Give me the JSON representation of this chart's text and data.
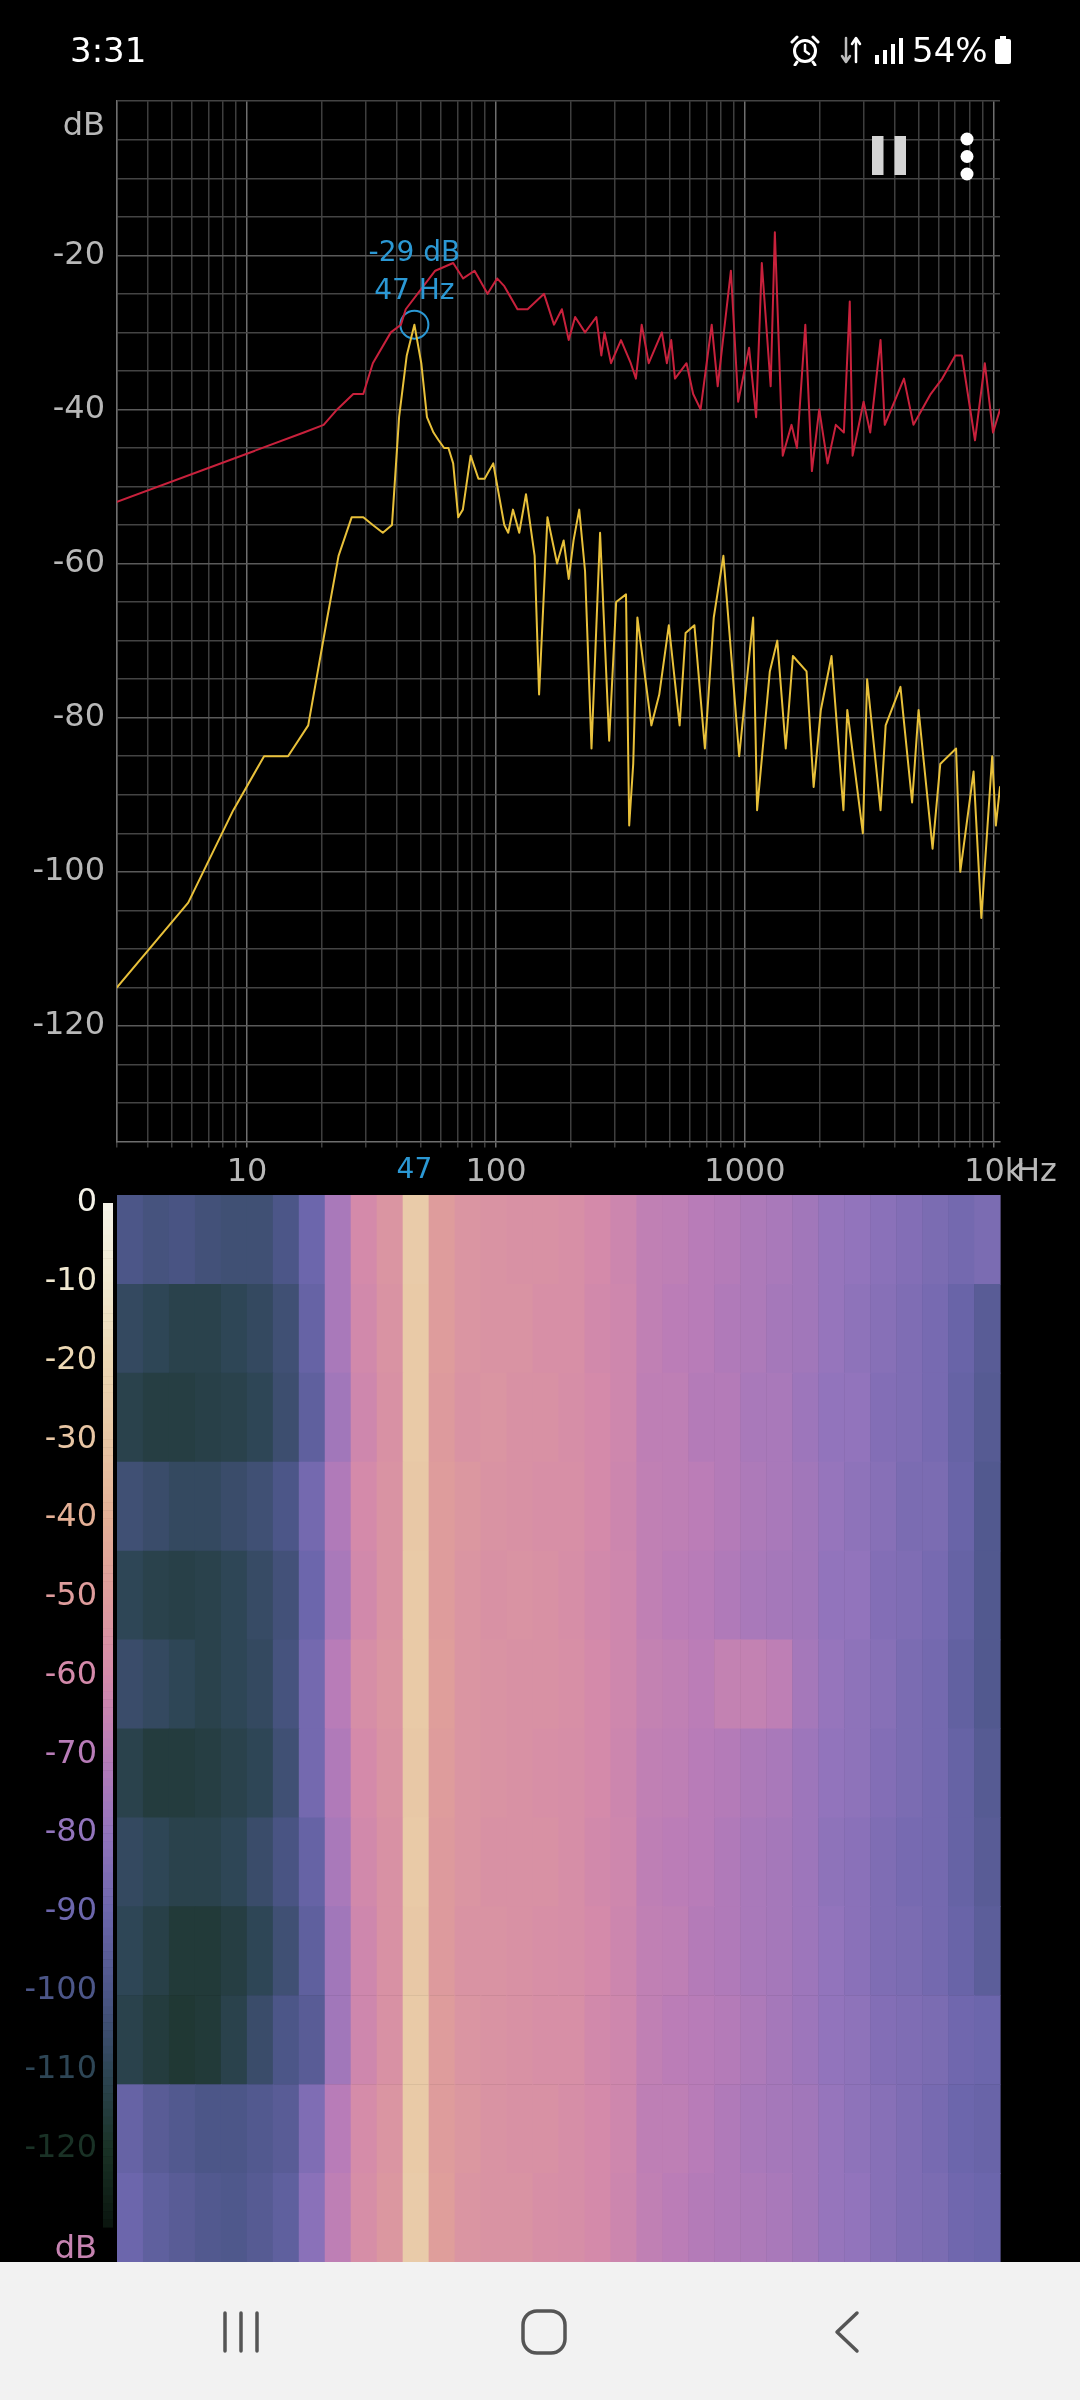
{
  "chart_data": [
    {
      "type": "other",
      "annotations": [
        "3:31",
        "54%"
      ]
    },
    {
      "type": "line",
      "ylabel": "dB",
      "xlabel": "Hz",
      "log": "x",
      "grid": true,
      "xlim": [
        3,
        10600
      ],
      "xticks": [
        {
          "value": 3,
          "label": null
        },
        {
          "value": 4,
          "label": null
        },
        {
          "value": 5,
          "label": null
        },
        {
          "value": 6,
          "label": null
        },
        {
          "value": 7,
          "label": null
        },
        {
          "value": 8,
          "label": null
        },
        {
          "value": 9,
          "label": null
        },
        10,
        {
          "value": 20,
          "label": null
        },
        {
          "value": 30,
          "label": null
        },
        {
          "value": 40,
          "label": null
        },
        47,
        {
          "value": 50,
          "label": null
        },
        {
          "value": 60,
          "label": null
        },
        {
          "value": 70,
          "label": null
        },
        {
          "value": 80,
          "label": null
        },
        {
          "value": 90,
          "label": null
        },
        100,
        {
          "value": 200,
          "label": null
        },
        {
          "value": 300,
          "label": null
        },
        {
          "value": 400,
          "label": null
        },
        {
          "value": 500,
          "label": null
        },
        {
          "value": 600,
          "label": null
        },
        {
          "value": 700,
          "label": null
        },
        {
          "value": 800,
          "label": null
        },
        {
          "value": 900,
          "label": null
        },
        1000,
        {
          "value": 2000,
          "label": null
        },
        {
          "value": 3000,
          "label": null
        },
        {
          "value": 4000,
          "label": null
        },
        {
          "value": 5000,
          "label": null
        },
        {
          "value": 6000,
          "label": null
        },
        {
          "value": 7000,
          "label": null
        },
        {
          "value": 8000,
          "label": null
        },
        {
          "value": 9000,
          "label": null
        },
        {
          "value": 10000,
          "label": "10k"
        }
      ],
      "ylim": [
        -135,
        0
      ],
      "yticks": [
        {
          "value": 0,
          "label": null
        },
        {
          "value": -5,
          "label": null
        },
        {
          "value": -10,
          "label": null
        },
        {
          "value": -15,
          "label": null
        },
        -20,
        {
          "value": -25,
          "label": null
        },
        {
          "value": -30,
          "label": null
        },
        {
          "value": -35,
          "label": null
        },
        -40,
        {
          "value": -45,
          "label": null
        },
        {
          "value": -50,
          "label": null
        },
        {
          "value": -55,
          "label": null
        },
        -60,
        {
          "value": -65,
          "label": null
        },
        {
          "value": -70,
          "label": null
        },
        {
          "value": -75,
          "label": null
        },
        -80,
        {
          "value": -85,
          "label": null
        },
        {
          "value": -90,
          "label": null
        },
        {
          "value": -95,
          "label": null
        },
        -100,
        {
          "value": -105,
          "label": null
        },
        {
          "value": -110,
          "label": null
        },
        {
          "value": -115,
          "label": null
        },
        -120,
        {
          "value": -125,
          "label": null
        },
        {
          "value": -130,
          "label": null
        }
      ],
      "series": [
        {
          "color": "#e8c03a",
          "x": [
            3,
            5.8,
            8.8,
            11.7,
            14.6,
            17.6,
            21,
            23.3,
            26.3,
            29.3,
            32,
            35.1,
            38.2,
            40.8,
            43.8,
            47,
            50.1,
            52.8,
            56.1,
            58.8,
            61.9,
            64.4,
            67.3,
            70.5,
            73.6,
            79.1,
            85,
            90,
            97.5,
            108,
            112,
            117,
            124,
            132,
            143,
            149,
            161,
            176,
            187,
            196,
            205,
            216,
            228,
            242,
            262,
            285,
            304,
            333,
            343,
            356,
            370,
            421,
            453,
            495,
            547,
            578,
            627,
            691,
            750,
            820,
            949,
            1080,
            1120,
            1260,
            1350,
            1460,
            1560,
            1770,
            1890,
            2020,
            2230,
            2490,
            2580,
            2980,
            3100,
            3510,
            3680,
            4220,
            4700,
            4990,
            5680,
            6100,
            7060,
            7340,
            8300,
            8920,
            9860,
            10200,
            10600
          ],
          "values": [
            -115,
            -104,
            -92,
            -85,
            -85,
            -81,
            -67,
            -59,
            -54,
            -54,
            -55,
            -56,
            -55,
            -41,
            -33,
            -29,
            -34,
            -41,
            -43,
            -44,
            -45,
            -45,
            -47,
            -54,
            -53,
            -46,
            -49,
            -49,
            -47,
            -55,
            -56,
            -53,
            -56,
            -51,
            -59,
            -77,
            -54,
            -60,
            -57,
            -62,
            -57,
            -53,
            -61,
            -84,
            -56,
            -83,
            -65,
            -64,
            -94,
            -86,
            -67,
            -81,
            -77,
            -68,
            -81,
            -69,
            -68,
            -84,
            -67,
            -59,
            -85,
            -67,
            -92,
            -74,
            -70,
            -84,
            -72,
            -74,
            -89,
            -79,
            -72,
            -92,
            -79,
            -95,
            -75,
            -92,
            -81,
            -76,
            -91,
            -79,
            -97,
            -86,
            -84,
            -100,
            -87,
            -106,
            -85,
            -94,
            -89
          ]
        },
        {
          "color": "#c8213c",
          "x": [
            3,
            16.9,
            20.3,
            23,
            26.7,
            29.3,
            32,
            37.8,
            41.5,
            43.4,
            57,
            67.3,
            73.8,
            82,
            92.5,
            101,
            108,
            122,
            134,
            156,
            171,
            184,
            196,
            208,
            228,
            253,
            265,
            273,
            290,
            318,
            348,
            365,
            385,
            411,
            464,
            486,
            506,
            524,
            583,
            620,
            664,
            736,
            778,
            879,
            940,
            1040,
            1110,
            1170,
            1270,
            1320,
            1420,
            1540,
            1620,
            1750,
            1860,
            1990,
            2150,
            2320,
            2500,
            2640,
            2710,
            3000,
            3190,
            3510,
            3650,
            4360,
            4760,
            5580,
            6210,
            7010,
            7450,
            8410,
            9210,
            9940,
            10600
          ],
          "values": [
            -52,
            -43,
            -42,
            -40,
            -38,
            -38,
            -34,
            -30,
            -29,
            -27,
            -22,
            -21,
            -23,
            -22,
            -25,
            -23,
            -24,
            -27,
            -27,
            -25,
            -29,
            -27,
            -31,
            -28,
            -30,
            -28,
            -33,
            -30,
            -34,
            -31,
            -34,
            -36,
            -29,
            -34,
            -30,
            -34,
            -31,
            -36,
            -34,
            -38,
            -40,
            -29,
            -37,
            -22,
            -39,
            -32,
            -41,
            -21,
            -37,
            -17,
            -46,
            -42,
            -45,
            -29,
            -48,
            -40,
            -47,
            -42,
            -43,
            -26,
            -46,
            -39,
            -43,
            -31,
            -42,
            -36,
            -42,
            -38,
            -36,
            -33,
            -33,
            -44,
            -34,
            -43,
            -40
          ]
        },
        {
          "type": "scatter",
          "marker": "circle",
          "color": "#2b98d4",
          "x": [
            47
          ],
          "values": [
            -29
          ]
        }
      ],
      "annotations": [
        {
          "text": "-29 dB",
          "x": 47,
          "y": -29
        },
        {
          "text": "47 Hz",
          "x": 47,
          "y": -29
        }
      ]
    },
    {
      "type": "heatmap",
      "tick_labels": false,
      "clim": [
        -130,
        0
      ],
      "cticks": [
        0,
        -10,
        -20,
        -30,
        -40,
        -50,
        -60,
        -70,
        -80,
        -90,
        -100,
        -110,
        -120
      ],
      "clabel": "dB",
      "categories": [
        null,
        null,
        null,
        null,
        null,
        null,
        null,
        null,
        null,
        null,
        null,
        null,
        null,
        null,
        null,
        null,
        null,
        null,
        null,
        null,
        null,
        null,
        null,
        null,
        null,
        null,
        null,
        null,
        null,
        null,
        null,
        null,
        null,
        null
      ],
      "y_categories": [
        null,
        null,
        null,
        null,
        null,
        null,
        null,
        null,
        null,
        null,
        null,
        null
      ],
      "cells": [
        [
          -100,
          -102,
          -101,
          -103,
          -104,
          -104,
          -100,
          -90,
          -74,
          -60,
          -54,
          -27,
          -50,
          -54,
          -55,
          -56,
          -56,
          -57,
          -60,
          -63,
          -67,
          -68,
          -70,
          -71,
          -73,
          -74,
          -76,
          -79,
          -80,
          -82,
          -84,
          -86,
          -88,
          -86
        ],
        [
          -108,
          -110,
          -112,
          -112,
          -110,
          -108,
          -104,
          -92,
          -74,
          -61,
          -55,
          -28,
          -50,
          -54,
          -55,
          -55,
          -57,
          -57,
          -61,
          -62,
          -67,
          -69,
          -70,
          -72,
          -73,
          -75,
          -76,
          -79,
          -81,
          -83,
          -85,
          -87,
          -91,
          -96
        ],
        [
          -112,
          -114,
          -114,
          -113,
          -112,
          -110,
          -105,
          -94,
          -76,
          -62,
          -56,
          -28,
          -51,
          -55,
          -54,
          -56,
          -56,
          -58,
          -60,
          -62,
          -68,
          -68,
          -71,
          -71,
          -74,
          -74,
          -77,
          -80,
          -80,
          -84,
          -85,
          -87,
          -92,
          -97
        ],
        [
          -104,
          -106,
          -108,
          -108,
          -106,
          -104,
          -100,
          -88,
          -72,
          -60,
          -55,
          -29,
          -50,
          -53,
          -55,
          -56,
          -57,
          -57,
          -60,
          -63,
          -67,
          -68,
          -69,
          -71,
          -73,
          -74,
          -76,
          -79,
          -81,
          -83,
          -86,
          -86,
          -91,
          -98
        ],
        [
          -110,
          -112,
          -113,
          -112,
          -110,
          -107,
          -103,
          -90,
          -74,
          -61,
          -55,
          -28,
          -50,
          -54,
          -56,
          -55,
          -56,
          -58,
          -61,
          -62,
          -67,
          -69,
          -70,
          -72,
          -74,
          -75,
          -76,
          -80,
          -80,
          -84,
          -85,
          -87,
          -92,
          -98
        ],
        [
          -106,
          -108,
          -110,
          -112,
          -110,
          -108,
          -102,
          -88,
          -70,
          -58,
          -54,
          -28,
          -49,
          -54,
          -55,
          -56,
          -56,
          -57,
          -60,
          -62,
          -66,
          -67,
          -69,
          -66,
          -66,
          -68,
          -75,
          -79,
          -81,
          -83,
          -86,
          -88,
          -93,
          -98
        ],
        [
          -112,
          -115,
          -115,
          -114,
          -112,
          -110,
          -104,
          -88,
          -72,
          -60,
          -55,
          -29,
          -50,
          -54,
          -55,
          -56,
          -57,
          -58,
          -60,
          -63,
          -67,
          -68,
          -70,
          -71,
          -73,
          -74,
          -77,
          -80,
          -81,
          -84,
          -86,
          -88,
          -92,
          -97
        ],
        [
          -108,
          -110,
          -112,
          -112,
          -110,
          -106,
          -101,
          -92,
          -74,
          -61,
          -56,
          -28,
          -51,
          -54,
          -56,
          -56,
          -56,
          -58,
          -61,
          -62,
          -68,
          -69,
          -70,
          -72,
          -74,
          -75,
          -77,
          -81,
          -82,
          -85,
          -87,
          -88,
          -92,
          -96
        ],
        [
          -110,
          -113,
          -116,
          -116,
          -114,
          -110,
          -104,
          -94,
          -76,
          -62,
          -56,
          -29,
          -51,
          -55,
          -55,
          -56,
          -57,
          -58,
          -60,
          -63,
          -67,
          -68,
          -71,
          -72,
          -74,
          -75,
          -77,
          -80,
          -82,
          -85,
          -86,
          -88,
          -91,
          -95
        ],
        [
          -112,
          -115,
          -117,
          -116,
          -112,
          -106,
          -100,
          -96,
          -76,
          -62,
          -56,
          -28,
          -50,
          -54,
          -55,
          -56,
          -57,
          -57,
          -61,
          -62,
          -67,
          -69,
          -70,
          -71,
          -73,
          -75,
          -77,
          -80,
          -81,
          -84,
          -85,
          -86,
          -89,
          -90
        ],
        [
          -92,
          -96,
          -98,
          -100,
          -100,
          -98,
          -96,
          -85,
          -70,
          -59,
          -54,
          -28,
          -50,
          -53,
          -55,
          -56,
          -56,
          -58,
          -60,
          -62,
          -68,
          -68,
          -70,
          -72,
          -74,
          -75,
          -76,
          -79,
          -81,
          -83,
          -85,
          -87,
          -90,
          -91
        ],
        [
          -90,
          -94,
          -96,
          -98,
          -99,
          -97,
          -94,
          -82,
          -68,
          -58,
          -53,
          -27,
          -49,
          -54,
          -55,
          -55,
          -57,
          -58,
          -60,
          -63,
          -67,
          -69,
          -71,
          -72,
          -73,
          -74,
          -76,
          -79,
          -80,
          -83,
          -85,
          -86,
          -89,
          -90
        ]
      ]
    }
  ]
}
